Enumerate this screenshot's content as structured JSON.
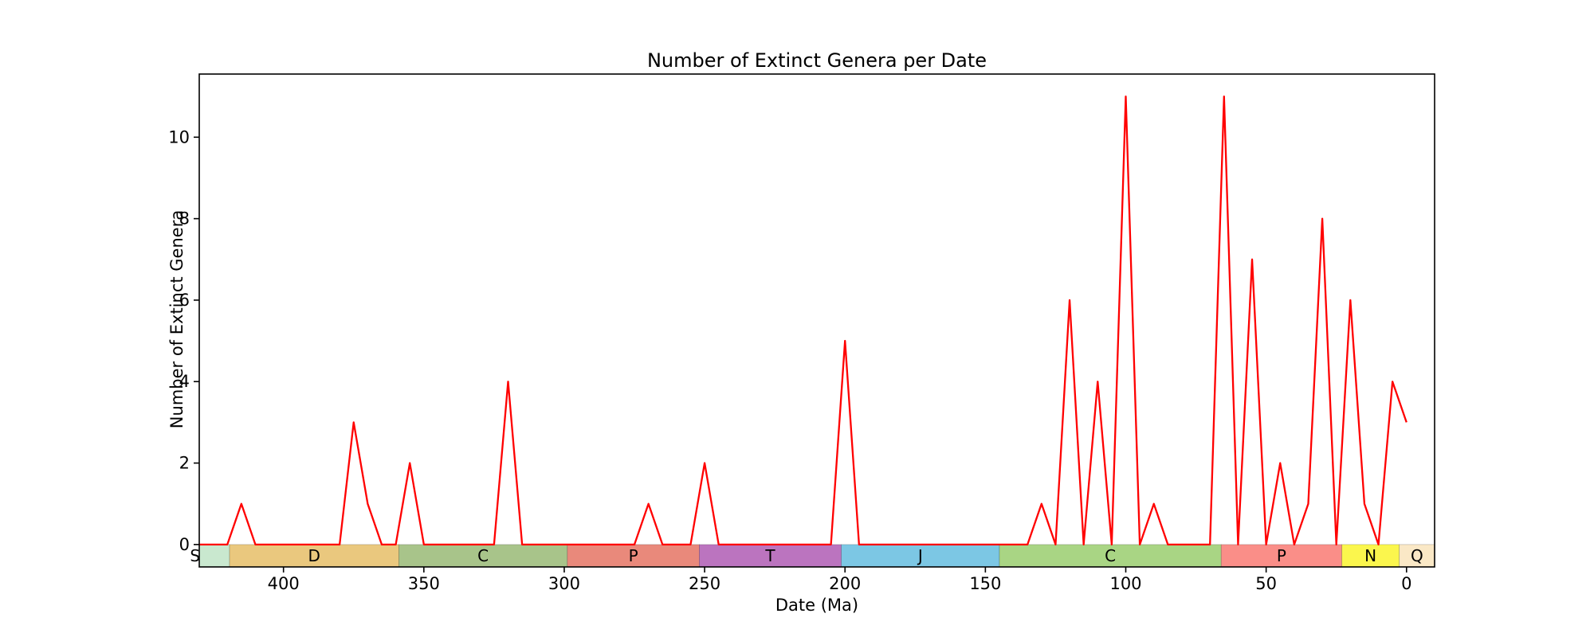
{
  "chart_data": {
    "type": "line",
    "title": "Number of Extinct Genera per Date",
    "xlabel": "Date (Ma)",
    "ylabel": "Number of Extinct Genera",
    "x_axis_inverted": true,
    "xlim": [
      430,
      -10
    ],
    "ylim": [
      -0.55,
      11.55
    ],
    "x_ticks": [
      400,
      350,
      300,
      250,
      200,
      150,
      100,
      50,
      0
    ],
    "y_ticks": [
      0,
      2,
      4,
      6,
      8,
      10
    ],
    "line_color": "#ff0000",
    "axis_color": "#000000",
    "x": [
      430,
      425,
      420,
      415,
      410,
      405,
      400,
      395,
      390,
      385,
      380,
      375,
      370,
      365,
      360,
      355,
      350,
      345,
      340,
      335,
      330,
      325,
      320,
      315,
      310,
      305,
      300,
      295,
      290,
      285,
      280,
      275,
      270,
      265,
      260,
      255,
      250,
      245,
      240,
      235,
      230,
      225,
      220,
      215,
      210,
      205,
      200,
      195,
      190,
      185,
      180,
      175,
      170,
      165,
      160,
      155,
      150,
      145,
      140,
      135,
      130,
      125,
      120,
      115,
      110,
      105,
      100,
      95,
      90,
      85,
      80,
      75,
      70,
      65,
      60,
      55,
      50,
      45,
      40,
      35,
      30,
      25,
      20,
      15,
      10,
      5,
      0
    ],
    "values": [
      0,
      0,
      0,
      1,
      0,
      0,
      0,
      0,
      0,
      0,
      0,
      3,
      1,
      0,
      0,
      2,
      0,
      0,
      0,
      0,
      0,
      0,
      4,
      0,
      0,
      0,
      0,
      0,
      0,
      0,
      0,
      0,
      1,
      0,
      0,
      0,
      2,
      0,
      0,
      0,
      0,
      0,
      0,
      0,
      0,
      0,
      5,
      0,
      0,
      0,
      0,
      0,
      0,
      0,
      0,
      0,
      0,
      0,
      0,
      0,
      1,
      0,
      6,
      0,
      4,
      0,
      11,
      0,
      1,
      0,
      0,
      0,
      0,
      11,
      0,
      7,
      0,
      2,
      0,
      1,
      8,
      0,
      6,
      1,
      0,
      4,
      3
    ],
    "periods": [
      {
        "label": "S",
        "start": 443.8,
        "end": 419.2,
        "color": "#c9e8cf"
      },
      {
        "label": "D",
        "start": 419.2,
        "end": 358.9,
        "color": "#eac87e"
      },
      {
        "label": "C",
        "start": 358.9,
        "end": 298.9,
        "color": "#a8c48a"
      },
      {
        "label": "P",
        "start": 298.9,
        "end": 251.9,
        "color": "#e9897b"
      },
      {
        "label": "T",
        "start": 251.9,
        "end": 201.3,
        "color": "#bb74bf"
      },
      {
        "label": "J",
        "start": 201.3,
        "end": 145.0,
        "color": "#7cc7e4"
      },
      {
        "label": "C",
        "start": 145.0,
        "end": 66.0,
        "color": "#a9d584"
      },
      {
        "label": "P",
        "start": 66.0,
        "end": 23.03,
        "color": "#fa8e88"
      },
      {
        "label": "N",
        "start": 23.03,
        "end": 2.58,
        "color": "#fbf64d"
      },
      {
        "label": "Q",
        "start": 2.58,
        "end": -10.0,
        "color": "#fae8c6"
      }
    ]
  }
}
